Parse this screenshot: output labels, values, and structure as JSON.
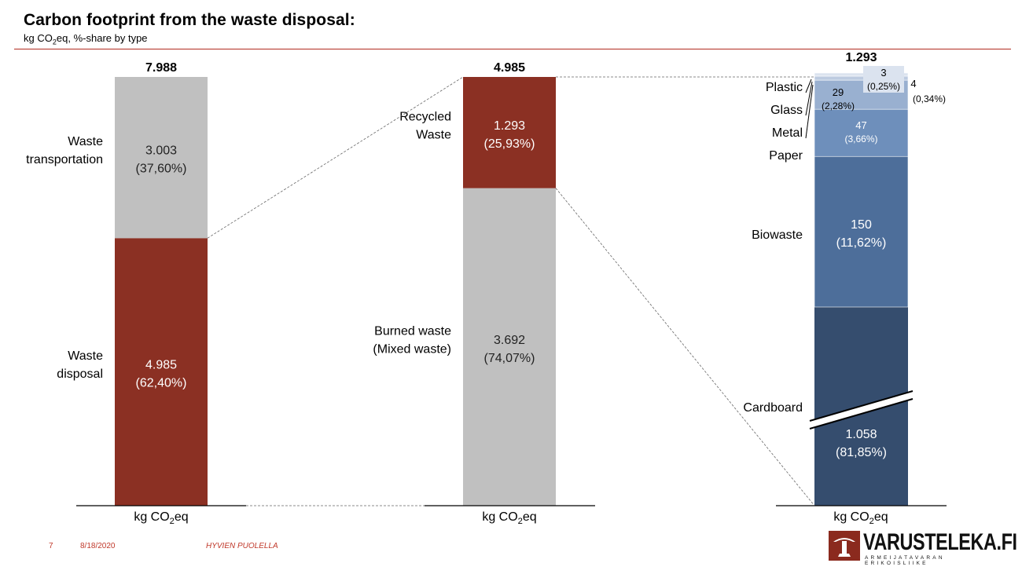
{
  "header": {
    "title": "Carbon footprint from the waste disposal:",
    "subtitle_prefix": "kg CO",
    "subtitle_sub": "2",
    "subtitle_suffix": "eq, %-share by type"
  },
  "axis_unit": {
    "prefix": "kg CO",
    "sub": "2",
    "suffix": "eq"
  },
  "chart_data": [
    {
      "type": "bar",
      "stacked": true,
      "total_label": "7.988",
      "segments": [
        {
          "name": "Waste disposal",
          "label": "Waste\ndisposal",
          "value": 4985,
          "value_label": "4.985",
          "pct_label": "(62,40%)",
          "color": "#8b3023",
          "text_color": "#ffffff"
        },
        {
          "name": "Waste transportation",
          "label": "Waste\ntransportation",
          "value": 3003,
          "value_label": "3.003",
          "pct_label": "(37,60%)",
          "color": "#c0c0c0",
          "text_color": "#222222"
        }
      ]
    },
    {
      "type": "bar",
      "stacked": true,
      "total_label": "4.985",
      "segments": [
        {
          "name": "Burned waste (Mixed waste)",
          "label": "Burned waste\n(Mixed waste)",
          "value": 3692,
          "value_label": "3.692",
          "pct_label": "(74,07%)",
          "color": "#c0c0c0",
          "text_color": "#222222"
        },
        {
          "name": "Recycled Waste",
          "label": "Recycled\nWaste",
          "value": 1293,
          "value_label": "1.293",
          "pct_label": "(25,93%)",
          "color": "#8b3023",
          "text_color": "#ffffff"
        }
      ]
    },
    {
      "type": "bar",
      "stacked": true,
      "axis_break": true,
      "total_label": "1.293",
      "segments": [
        {
          "name": "Cardboard",
          "label": "Cardboard",
          "value": 1058,
          "value_label": "1.058",
          "pct_label": "(81,85%)",
          "color": "#354d6e",
          "text_color": "#ffffff"
        },
        {
          "name": "Biowaste",
          "label": "Biowaste",
          "value": 150,
          "value_label": "150",
          "pct_label": "(11,62%)",
          "color": "#4d6e9a",
          "text_color": "#ffffff"
        },
        {
          "name": "Paper",
          "label": "Paper",
          "value": 47,
          "value_label": "47",
          "pct_label": "(3,66%)",
          "color": "#6e8fbb",
          "text_color": "#ffffff"
        },
        {
          "name": "Metal",
          "label": "Metal",
          "value": 29,
          "value_label": "29",
          "pct_label": "(2,28%)",
          "color": "#99b0d0",
          "text_color": "#111111"
        },
        {
          "name": "Glass",
          "label": "Glass",
          "value": 4,
          "value_label": "4",
          "pct_label": "(0,34%)",
          "color": "#bdcbe0",
          "text_color": "#111111"
        },
        {
          "name": "Plastic",
          "label": "Plastic",
          "value": 3,
          "value_label": "3",
          "pct_label": "(0,25%)",
          "color": "#dbe3ef",
          "text_color": "#111111"
        }
      ]
    }
  ],
  "footer": {
    "page": "7",
    "date": "8/18/2020",
    "note": "HYVIEN PUOLELLA"
  },
  "logo": {
    "wordmark": "VARUSTELEKA.FI",
    "tagline": "ARMEIJATAVARAN ERIKOISLIIKE"
  },
  "colors": {
    "accent_red": "#8b3023",
    "rule_red": "#b22a1f",
    "grey": "#c0c0c0"
  }
}
